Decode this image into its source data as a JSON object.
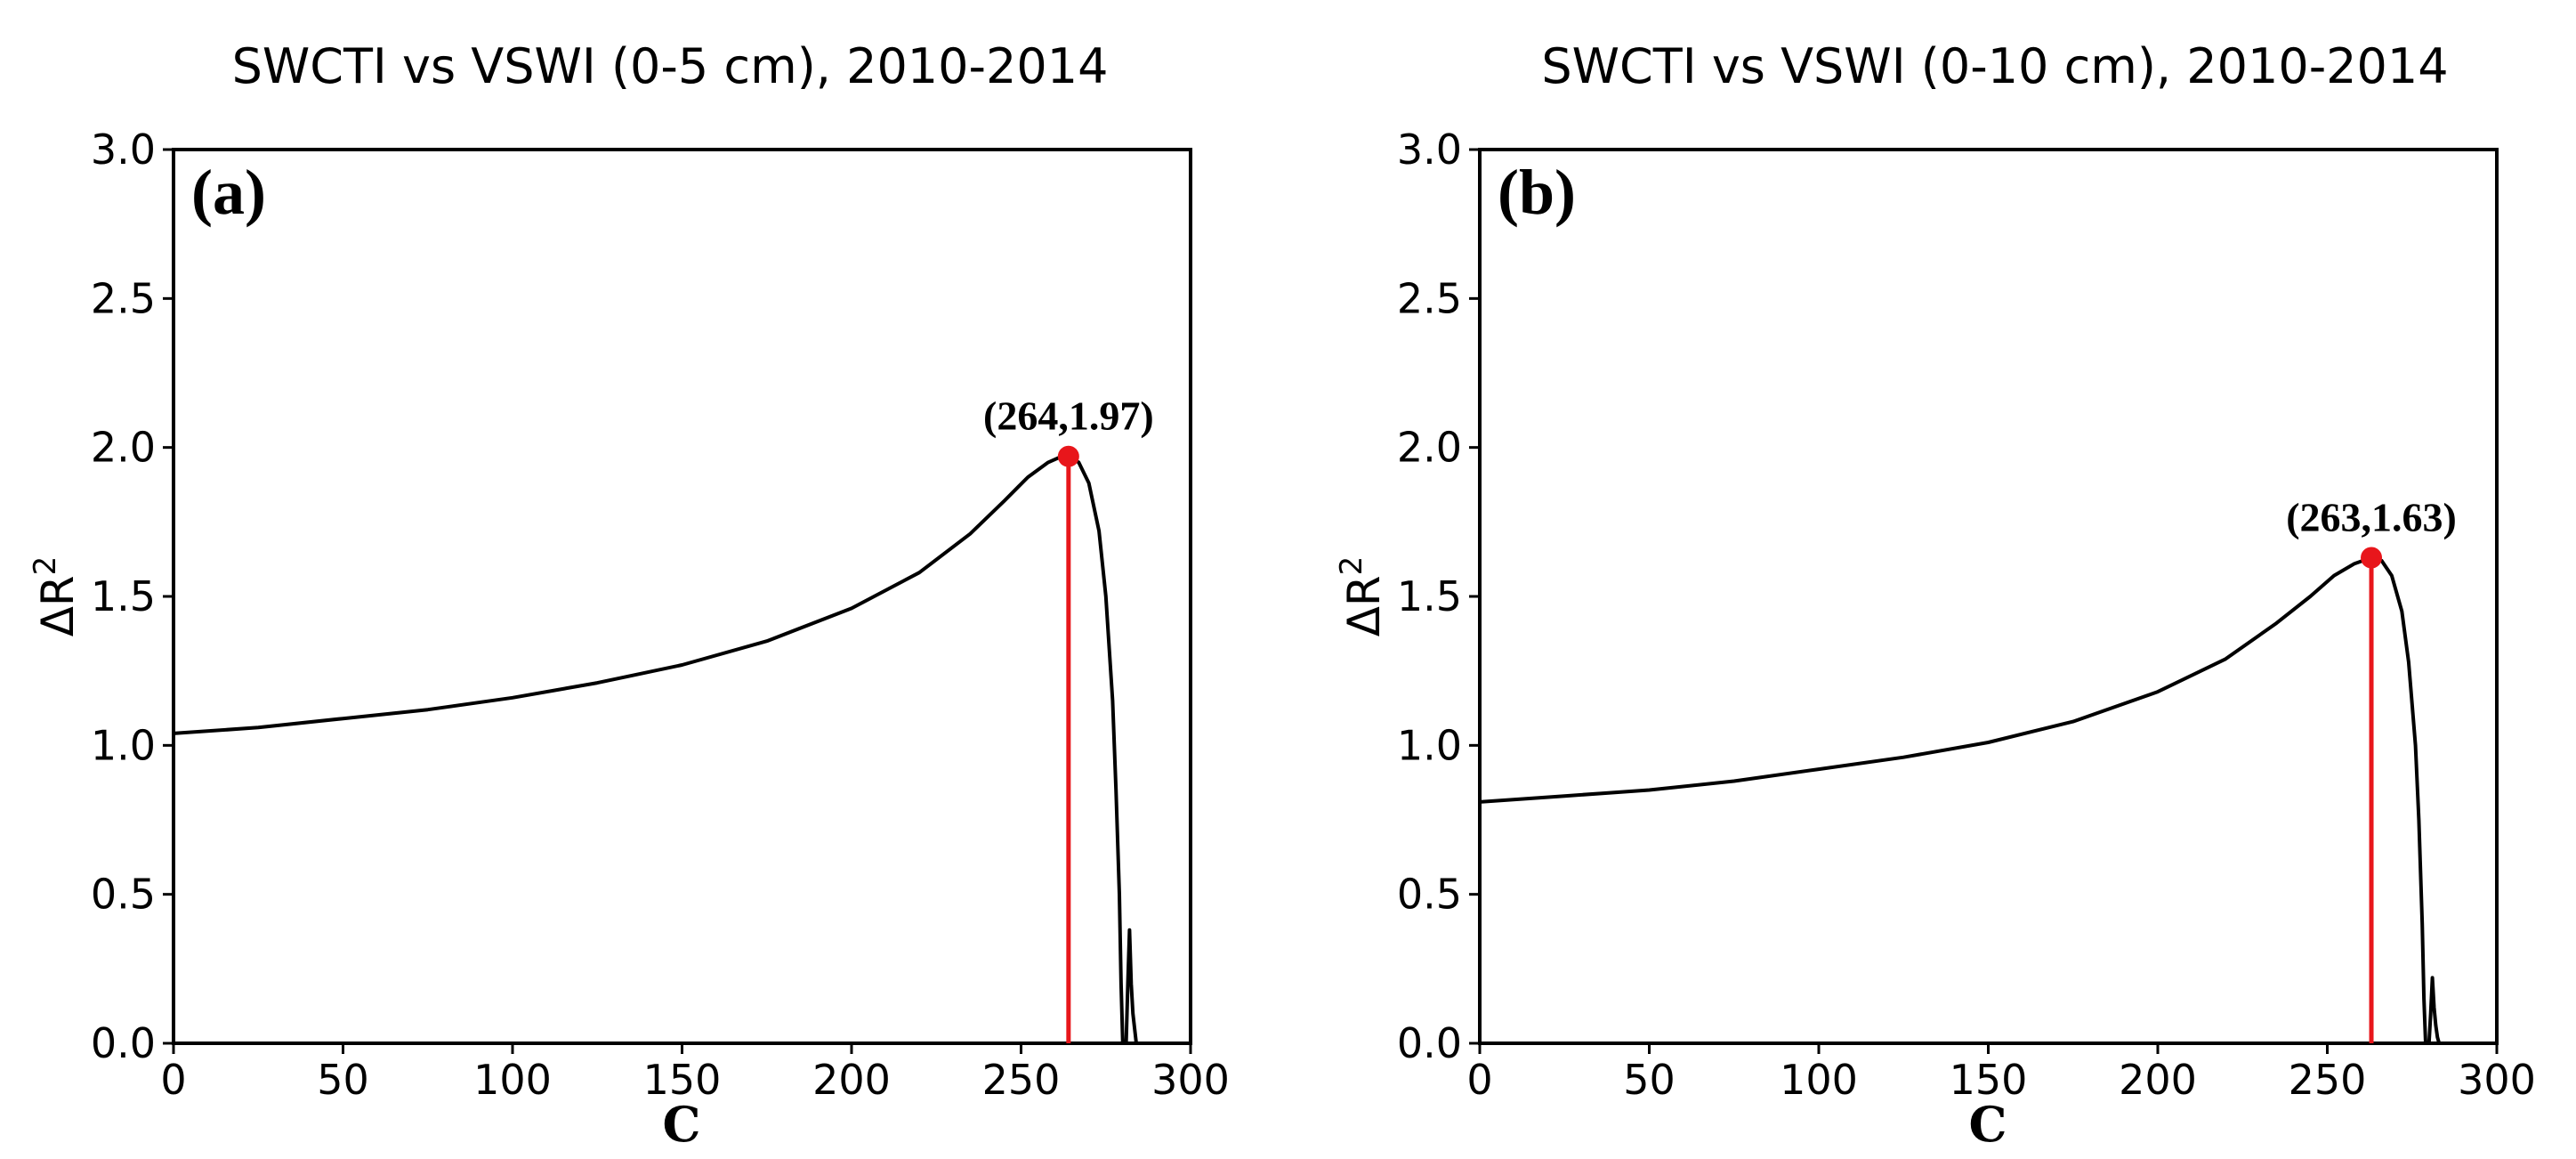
{
  "chart_data": [
    {
      "type": "line",
      "panel_label": "(a)",
      "title": "SWCTI vs VSWI (0-5 cm), 2010-2014",
      "xlabel": "C",
      "ylabel": "ΔR",
      "ylabel_superscript": "2",
      "xlim": [
        0,
        300
      ],
      "ylim": [
        0.0,
        3.0
      ],
      "xticks": [
        0,
        50,
        100,
        150,
        200,
        250,
        300
      ],
      "yticks": [
        0.0,
        0.5,
        1.0,
        1.5,
        2.0,
        2.5,
        3.0
      ],
      "grid": false,
      "series": [
        {
          "color": "#000000",
          "x": [
            0,
            25,
            50,
            75,
            100,
            125,
            150,
            175,
            200,
            220,
            235,
            245,
            252,
            258,
            262,
            264,
            267,
            270,
            273,
            275,
            277,
            278,
            279,
            279.5,
            280,
            281,
            281.5,
            282,
            282.5,
            283,
            283.5,
            284
          ],
          "y": [
            1.04,
            1.06,
            1.09,
            1.12,
            1.16,
            1.21,
            1.27,
            1.35,
            1.46,
            1.58,
            1.71,
            1.82,
            1.9,
            1.95,
            1.97,
            1.97,
            1.95,
            1.88,
            1.72,
            1.5,
            1.15,
            0.85,
            0.5,
            0.2,
            0.0,
            0.0,
            0.2,
            0.38,
            0.2,
            0.1,
            0.05,
            0.0
          ]
        }
      ],
      "peak": {
        "x": 264,
        "y": 1.97,
        "label": "(264,1.97)",
        "color": "#e8161b"
      }
    },
    {
      "type": "line",
      "panel_label": "(b)",
      "title": "SWCTI vs VSWI (0-10 cm), 2010-2014",
      "xlabel": "C",
      "ylabel": "ΔR",
      "ylabel_superscript": "2",
      "xlim": [
        0,
        300
      ],
      "ylim": [
        0.0,
        3.0
      ],
      "xticks": [
        0,
        50,
        100,
        150,
        200,
        250,
        300
      ],
      "yticks": [
        0.0,
        0.5,
        1.0,
        1.5,
        2.0,
        2.5,
        3.0
      ],
      "grid": false,
      "series": [
        {
          "color": "#000000",
          "x": [
            0,
            25,
            50,
            75,
            100,
            125,
            150,
            175,
            200,
            220,
            235,
            245,
            252,
            258,
            263,
            266,
            269,
            272,
            274,
            276,
            277,
            278,
            278.5,
            279,
            280,
            280.5,
            281,
            281.5,
            282,
            282.5,
            283
          ],
          "y": [
            0.81,
            0.83,
            0.85,
            0.88,
            0.92,
            0.96,
            1.01,
            1.08,
            1.18,
            1.29,
            1.41,
            1.5,
            1.57,
            1.61,
            1.63,
            1.62,
            1.57,
            1.45,
            1.28,
            1.0,
            0.75,
            0.4,
            0.15,
            0.0,
            0.0,
            0.1,
            0.22,
            0.12,
            0.06,
            0.02,
            0.0
          ]
        }
      ],
      "peak": {
        "x": 263,
        "y": 1.63,
        "label": "(263,1.63)",
        "color": "#e8161b"
      }
    }
  ]
}
